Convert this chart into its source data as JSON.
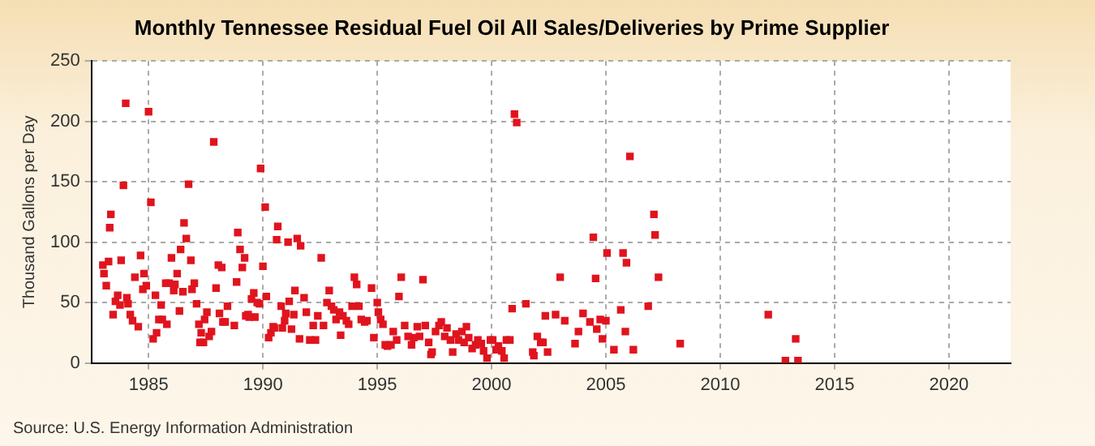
{
  "chart_data": {
    "type": "scatter",
    "title": "Monthly Tennessee Residual Fuel Oil All Sales/Deliveries by Prime Supplier",
    "ylabel": "Thousand Gallons per Day",
    "annotations": [
      "Source: U.S. Energy Information Administration"
    ],
    "xlim": [
      1982.5,
      2022.7
    ],
    "xticks": [
      1985,
      1990,
      1995,
      2000,
      2005,
      2010,
      2015,
      2020
    ],
    "ylim": [
      0,
      250
    ],
    "yticks": [
      0,
      50,
      100,
      150,
      200,
      250
    ],
    "grid": true,
    "marker": "square",
    "legend": false,
    "series": [
      {
        "color": "#e0141e",
        "x": [
          1983.0,
          1983.05,
          1983.15,
          1983.25,
          1983.3,
          1983.35,
          1983.45,
          1983.55,
          1983.65,
          1983.75,
          1983.8,
          1983.9,
          1984.0,
          1984.05,
          1984.1,
          1984.2,
          1984.3,
          1984.4,
          1984.55,
          1984.65,
          1984.75,
          1984.8,
          1984.9,
          1985.0,
          1985.1,
          1985.2,
          1985.3,
          1985.35,
          1985.45,
          1985.55,
          1985.6,
          1985.75,
          1985.8,
          1985.9,
          1986.0,
          1986.1,
          1986.15,
          1986.25,
          1986.35,
          1986.4,
          1986.5,
          1986.55,
          1986.65,
          1986.75,
          1986.85,
          1986.9,
          1987.0,
          1987.1,
          1987.2,
          1987.25,
          1987.3,
          1987.4,
          1987.45,
          1987.55,
          1987.65,
          1987.75,
          1987.85,
          1987.95,
          1988.05,
          1988.1,
          1988.2,
          1988.25,
          1988.35,
          1988.45,
          1988.75,
          1988.85,
          1988.9,
          1989.0,
          1989.1,
          1989.2,
          1989.25,
          1989.35,
          1989.4,
          1989.5,
          1989.6,
          1989.65,
          1989.75,
          1989.85,
          1989.9,
          1990.0,
          1990.1,
          1990.15,
          1990.25,
          1990.35,
          1990.45,
          1990.5,
          1990.6,
          1990.65,
          1990.8,
          1990.85,
          1990.95,
          1991.0,
          1991.1,
          1991.15,
          1991.25,
          1991.35,
          1991.4,
          1991.5,
          1991.6,
          1991.65,
          1991.8,
          1991.9,
          1992.05,
          1992.2,
          1992.3,
          1992.4,
          1992.55,
          1992.65,
          1992.8,
          1992.9,
          1993.0,
          1993.1,
          1993.2,
          1993.35,
          1993.4,
          1993.5,
          1993.65,
          1993.75,
          1993.9,
          1994.0,
          1994.1,
          1994.2,
          1994.3,
          1994.45,
          1994.55,
          1994.75,
          1994.85,
          1995.0,
          1995.05,
          1995.15,
          1995.25,
          1995.35,
          1995.45,
          1995.6,
          1995.7,
          1995.85,
          1995.95,
          1996.05,
          1996.2,
          1996.35,
          1996.5,
          1996.6,
          1996.75,
          1996.85,
          1997.0,
          1997.1,
          1997.25,
          1997.35,
          1997.4,
          1997.55,
          1997.7,
          1997.8,
          1997.95,
          1998.05,
          1998.2,
          1998.3,
          1998.45,
          1998.55,
          1998.7,
          1998.8,
          1998.9,
          1999.0,
          1999.15,
          1999.3,
          1999.4,
          1999.55,
          1999.65,
          1999.8,
          1999.95,
          2000.05,
          2000.2,
          2000.3,
          2000.45,
          2000.55,
          2000.65,
          2000.8,
          2000.9,
          2001.0,
          2001.1,
          2001.5,
          2001.8,
          2001.85,
          2002.0,
          2002.15,
          2002.25,
          2002.35,
          2002.45,
          2002.8,
          2003.0,
          2003.2,
          2003.65,
          2003.8,
          2004.0,
          2004.3,
          2004.45,
          2004.55,
          2004.6,
          2004.75,
          2004.85,
          2005.0,
          2005.05,
          2005.35,
          2005.65,
          2005.75,
          2005.85,
          2005.9,
          2006.05,
          2006.2,
          2006.85,
          2007.1,
          2007.15,
          2007.3,
          2008.25,
          2012.1,
          2012.85,
          2013.3,
          2013.4
        ],
        "values": [
          81,
          74,
          64,
          84,
          112,
          123,
          40,
          51,
          56,
          48,
          85,
          147,
          215,
          54,
          49,
          40,
          35,
          71,
          30,
          89,
          61,
          74,
          64,
          208,
          133,
          20,
          56,
          25,
          36,
          48,
          36,
          66,
          32,
          66,
          87,
          60,
          65,
          74,
          43,
          94,
          59,
          116,
          103,
          148,
          85,
          61,
          66,
          49,
          32,
          17,
          25,
          17,
          36,
          42,
          22,
          26,
          183,
          62,
          81,
          41,
          79,
          34,
          34,
          47,
          31,
          67,
          108,
          94,
          79,
          87,
          39,
          40,
          38,
          53,
          58,
          38,
          50,
          49,
          161,
          80,
          129,
          55,
          21,
          25,
          30,
          29,
          102,
          113,
          47,
          29,
          35,
          41,
          100,
          51,
          28,
          40,
          60,
          103,
          20,
          97,
          54,
          42,
          19,
          31,
          19,
          39,
          87,
          31,
          50,
          60,
          47,
          44,
          36,
          42,
          23,
          39,
          35,
          32,
          47,
          71,
          65,
          47,
          36,
          34,
          35,
          62,
          21,
          50,
          42,
          36,
          32,
          15,
          14,
          15,
          26,
          19,
          55,
          71,
          31,
          22,
          15,
          21,
          30,
          22,
          69,
          31,
          17,
          7,
          9,
          26,
          31,
          34,
          22,
          29,
          19,
          9,
          24,
          19,
          26,
          17,
          30,
          21,
          12,
          15,
          19,
          16,
          10,
          4,
          19,
          19,
          11,
          14,
          10,
          4,
          19,
          19,
          45,
          206,
          199,
          49,
          9,
          6,
          22,
          17,
          17,
          39,
          9,
          40,
          71,
          35,
          16,
          26,
          41,
          34,
          104,
          70,
          28,
          36,
          20,
          35,
          91,
          11,
          44,
          91,
          26,
          83,
          171,
          11,
          47,
          123,
          106,
          71,
          16,
          40,
          2,
          20,
          2
        ]
      }
    ]
  }
}
